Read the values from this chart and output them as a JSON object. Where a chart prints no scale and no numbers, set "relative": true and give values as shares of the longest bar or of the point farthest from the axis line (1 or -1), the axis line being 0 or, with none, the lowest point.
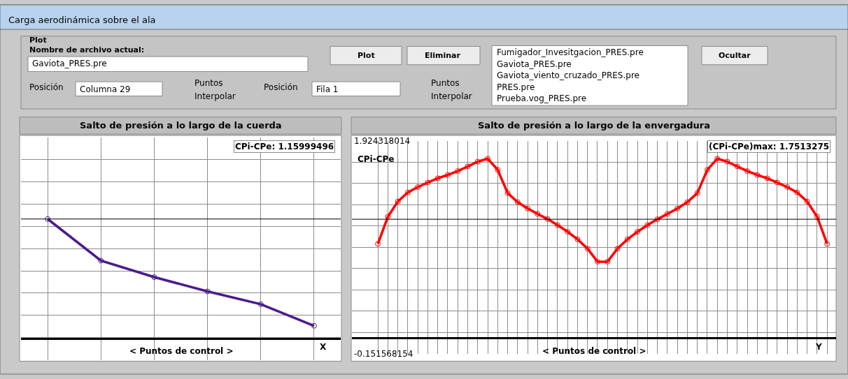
{
  "chart_data": [
    {
      "type": "other",
      "title": "Carga aerodinámica sobre el ala",
      "annotations": [
        "Plot",
        "Nombre de archivo actual:",
        "Gaviota_PRES.pre",
        "Posición",
        "Columna 29",
        "Puntos",
        "Interpolar",
        "Posición",
        "Fila 1",
        "Puntos",
        "Interpolar",
        "Plot",
        "Eliminar",
        "Fumigador_Invesitgacion_PRES.pre",
        "Gaviota_PRES.pre",
        "Gaviota_viento_cruzado_PRES.pre",
        "PRES.pre",
        "Prueba.vog_PRES.pre",
        "Ocultar"
      ]
    },
    {
      "type": "line",
      "title": "Salto de presión a lo largo de la cuerda",
      "xlabel": "< Puntos de control >",
      "relative": true,
      "categories": [
        null,
        null,
        null,
        null,
        null,
        null
      ],
      "series": [
        {
          "color": "#4b1a8c",
          "values": [
            1,
            0.653,
            0.515,
            0.396,
            0.289,
            0.109
          ]
        }
      ],
      "annotations": [
        "CPi-CPe: 1.15999496",
        "X"
      ],
      "ref_lines": [
        {
          "axis": "y",
          "value": 1,
          "color": "#000000"
        }
      ],
      "grid": true,
      "marker": "circle"
    },
    {
      "type": "line",
      "title": "Salto de presión a lo largo de la envergadura",
      "xlabel": "< Puntos de control >",
      "ylabel": "CPi-CPe",
      "categories": [
        null,
        null,
        null,
        null,
        null,
        null,
        null,
        null,
        null,
        null,
        null,
        null,
        null,
        null,
        null,
        null,
        null,
        null,
        null,
        null,
        null,
        null,
        null,
        null,
        null,
        null,
        null,
        null,
        null,
        null,
        null,
        null,
        null,
        null,
        null,
        null,
        null,
        null,
        null,
        null,
        null,
        null,
        null,
        null,
        null,
        null
      ],
      "series": [
        {
          "color": "#ff0000",
          "values": [
            0.92,
            1.185,
            1.333,
            1.421,
            1.474,
            1.518,
            1.56,
            1.592,
            1.63,
            1.675,
            1.722,
            1.751,
            1.642,
            1.415,
            1.327,
            1.265,
            1.212,
            1.162,
            1.103,
            1.038,
            0.964,
            0.873,
            0.746,
            0.746,
            0.873,
            0.964,
            1.038,
            1.103,
            1.16,
            1.212,
            1.265,
            1.327,
            1.415,
            1.642,
            1.751,
            1.722,
            1.675,
            1.63,
            1.592,
            1.56,
            1.518,
            1.474,
            1.421,
            1.333,
            1.185,
            0.92
          ]
        }
      ],
      "ylim": [
        -0.151568154,
        1.924318014
      ],
      "yticks": [
        -0.151568154,
        1.924318014
      ],
      "annotations": [
        "(CPi-CPe)max: 1.7513275",
        "Y"
      ],
      "ref_lines": [
        {
          "axis": "y",
          "value": 1.16,
          "color": "#000000"
        }
      ],
      "grid": true,
      "marker": "circle"
    }
  ]
}
